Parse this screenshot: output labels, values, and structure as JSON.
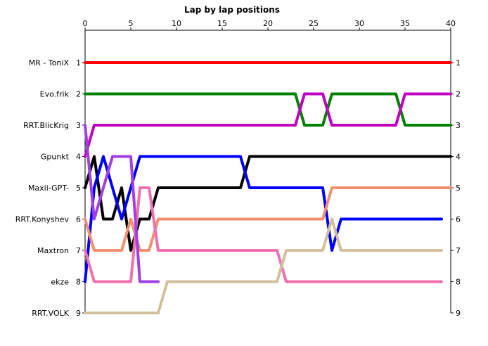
{
  "chart_data": {
    "type": "line",
    "title": "Lap by lap positions",
    "xlim": [
      0,
      40
    ],
    "ylim": [
      1,
      9
    ],
    "x_ticks": [
      0,
      5,
      10,
      15,
      20,
      25,
      30,
      35,
      40
    ],
    "y_ticks": [
      1,
      2,
      3,
      4,
      5,
      6,
      7,
      8,
      9
    ],
    "x_tick_labels": [
      "0",
      "5",
      "10",
      "15",
      "20",
      "25",
      "30",
      "35",
      "40"
    ],
    "y_tick_labels": [
      "1",
      "2",
      "3",
      "4",
      "5",
      "6",
      "7",
      "8",
      "9"
    ],
    "grid": false,
    "drivers": [
      "MR - ToniX",
      "Evo.frik",
      "RRT.BlicKrig",
      "Gpunkt",
      "Maxii-GPT-",
      "RRT.Konyshev",
      "Maxtron",
      "ekze",
      "RRT.VOLK"
    ],
    "series": [
      {
        "name": "MR - ToniX",
        "color": "#ff0000",
        "points": [
          [
            0,
            1
          ],
          [
            40,
            1
          ]
        ]
      },
      {
        "name": "Evo.frik",
        "color": "#008000",
        "points": [
          [
            0,
            2
          ],
          [
            23,
            2
          ],
          [
            24,
            3
          ],
          [
            26,
            3
          ],
          [
            27,
            2
          ],
          [
            34,
            2
          ],
          [
            35,
            3
          ],
          [
            40,
            3
          ]
        ]
      },
      {
        "name": "RRT.BlicKrig",
        "color": "#c000c0",
        "points": [
          [
            0,
            4
          ],
          [
            1,
            3
          ],
          [
            23,
            3
          ],
          [
            24,
            2
          ],
          [
            26,
            2
          ],
          [
            27,
            3
          ],
          [
            34,
            3
          ],
          [
            35,
            2
          ],
          [
            40,
            2
          ]
        ]
      },
      {
        "name": "Gpunkt",
        "color": "#000000",
        "points": [
          [
            0,
            5
          ],
          [
            1,
            4
          ],
          [
            2,
            6
          ],
          [
            3,
            6
          ],
          [
            4,
            5
          ],
          [
            5,
            7
          ],
          [
            6,
            6
          ],
          [
            7,
            6
          ],
          [
            8,
            5
          ],
          [
            17,
            5
          ],
          [
            18,
            4
          ],
          [
            40,
            4
          ]
        ]
      },
      {
        "name": "Maxii-GPT-",
        "color": "#0000ff",
        "points": [
          [
            0,
            8
          ],
          [
            1,
            5
          ],
          [
            2,
            4
          ],
          [
            3,
            5
          ],
          [
            4,
            6
          ],
          [
            5,
            5
          ],
          [
            6,
            4
          ],
          [
            17,
            4
          ],
          [
            18,
            5
          ],
          [
            26,
            5
          ],
          [
            27,
            7
          ],
          [
            28,
            6
          ],
          [
            39,
            6
          ]
        ]
      },
      {
        "name": "RRT.Konyshev",
        "color": "#f09070",
        "points": [
          [
            0,
            6
          ],
          [
            1,
            7
          ],
          [
            4,
            7
          ],
          [
            5,
            6
          ],
          [
            6,
            7
          ],
          [
            7,
            7
          ],
          [
            8,
            6
          ],
          [
            26,
            6
          ],
          [
            27,
            5
          ],
          [
            40,
            5
          ]
        ]
      },
      {
        "name": "Maxtron",
        "color": "#f070b0",
        "points": [
          [
            0,
            7
          ],
          [
            1,
            8
          ],
          [
            5,
            8
          ],
          [
            6,
            5
          ],
          [
            7,
            5
          ],
          [
            8,
            7
          ],
          [
            21,
            7
          ],
          [
            22,
            8
          ],
          [
            39,
            8
          ]
        ]
      },
      {
        "name": "ekze",
        "color": "#a040e0",
        "points": [
          [
            0,
            3
          ],
          [
            1,
            6
          ],
          [
            2,
            5
          ],
          [
            3,
            4
          ],
          [
            5,
            4
          ],
          [
            6,
            8
          ],
          [
            8,
            8
          ]
        ]
      },
      {
        "name": "RRT.VOLK",
        "color": "#d2c09c",
        "points": [
          [
            0,
            9
          ],
          [
            8,
            9
          ],
          [
            9,
            8
          ],
          [
            21,
            8
          ],
          [
            22,
            7
          ],
          [
            26,
            7
          ],
          [
            27,
            6
          ],
          [
            28,
            7
          ],
          [
            39,
            7
          ]
        ]
      }
    ]
  }
}
